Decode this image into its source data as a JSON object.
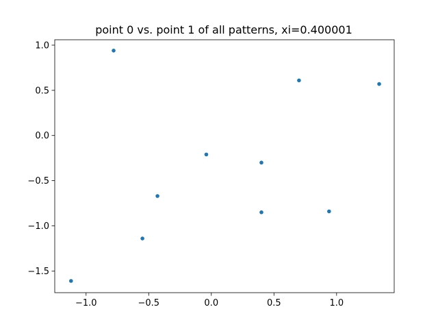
{
  "chart_data": {
    "type": "scatter",
    "title": "point 0 vs. point 1 of all patterns, xi=0.400001",
    "xlabel": "",
    "ylabel": "",
    "xlim": [
      -1.25,
      1.46
    ],
    "ylim": [
      -1.74,
      1.06
    ],
    "x_ticks": [
      -1.0,
      -0.5,
      0.0,
      0.5,
      1.0
    ],
    "x_tick_labels": [
      "−1.0",
      "−0.5",
      "0.0",
      "0.5",
      "1.0"
    ],
    "y_ticks": [
      -1.5,
      -1.0,
      -0.5,
      0.0,
      0.5,
      1.0
    ],
    "y_tick_labels": [
      "−1.5",
      "−1.0",
      "−0.5",
      "0.0",
      "0.5",
      "1.0"
    ],
    "grid": false,
    "marker_color": "#1f77b4",
    "points": [
      {
        "x": -0.78,
        "y": 0.94
      },
      {
        "x": 0.7,
        "y": 0.61
      },
      {
        "x": 1.34,
        "y": 0.57
      },
      {
        "x": -0.04,
        "y": -0.21
      },
      {
        "x": 0.4,
        "y": -0.3
      },
      {
        "x": -0.43,
        "y": -0.67
      },
      {
        "x": 0.4,
        "y": -0.85
      },
      {
        "x": 0.94,
        "y": -0.84
      },
      {
        "x": -0.55,
        "y": -1.14
      },
      {
        "x": -1.12,
        "y": -1.61
      }
    ]
  }
}
